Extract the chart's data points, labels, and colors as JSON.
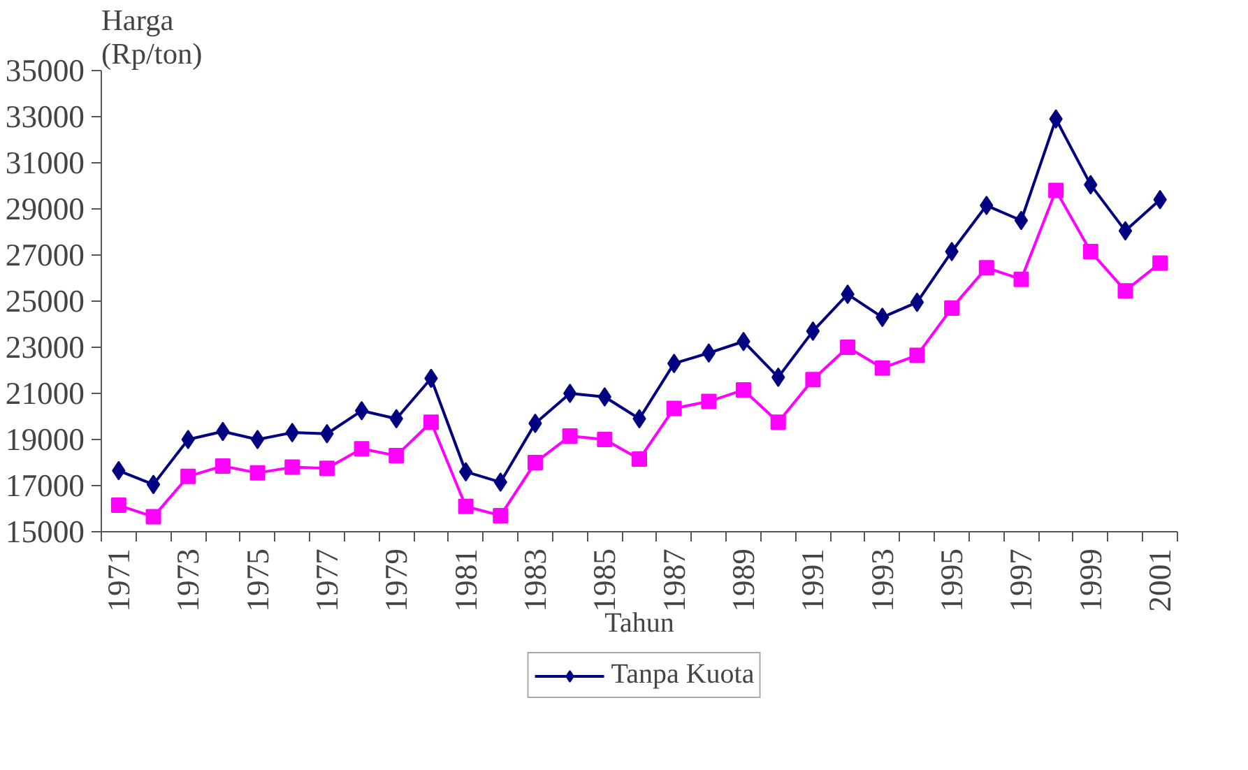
{
  "chart_data": {
    "type": "line",
    "xlabel": "Tahun",
    "ylabel": "Harga\n(Rp/ton)",
    "categories": [
      "1971",
      null,
      "1973",
      null,
      "1975",
      null,
      "1977",
      null,
      "1979",
      null,
      "1981",
      null,
      "1983",
      null,
      "1985",
      null,
      "1987",
      null,
      "1989",
      null,
      "1991",
      null,
      "1993",
      null,
      "1995",
      null,
      "1997",
      null,
      "1999",
      null,
      "2001"
    ],
    "series": [
      {
        "name": "Tanpa Kuota",
        "color": "#000080",
        "marker": "diamond",
        "values": [
          17650,
          17050,
          19000,
          19350,
          19000,
          19300,
          19250,
          20250,
          19900,
          21650,
          17600,
          17150,
          19700,
          21000,
          20850,
          19900,
          22300,
          22750,
          23250,
          21700,
          23700,
          25300,
          24300,
          24950,
          27150,
          29150,
          28500,
          32900,
          30050,
          28050,
          29400
        ]
      },
      {
        "color": "#ff00ff",
        "marker": "square",
        "values": [
          16150,
          15650,
          17400,
          17850,
          17550,
          17800,
          17750,
          18600,
          18300,
          19750,
          16100,
          15700,
          18000,
          19150,
          19000,
          18150,
          20350,
          20650,
          21150,
          19750,
          21600,
          23000,
          22100,
          22650,
          24700,
          26450,
          25950,
          29800,
          27150,
          25450,
          26650
        ]
      }
    ],
    "ylim": [
      15000,
      35000
    ],
    "yticks": [
      15000,
      17000,
      19000,
      21000,
      23000,
      25000,
      27000,
      29000,
      31000,
      33000,
      35000
    ],
    "grid": false,
    "legend": "bottom",
    "line_style": "solid"
  }
}
